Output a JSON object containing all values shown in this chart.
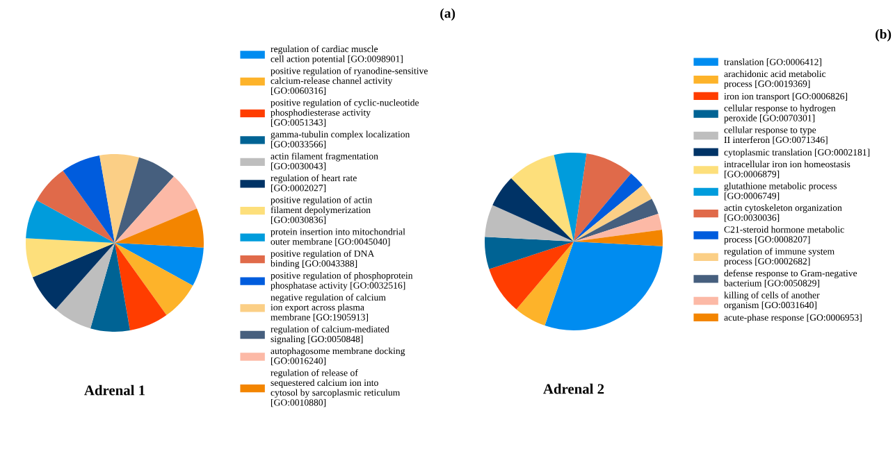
{
  "chart_data": [
    {
      "type": "pie",
      "title": "Adrenal 1",
      "annotations": [
        "(a)"
      ],
      "legend": "right",
      "categories": [
        "regulation of cardiac muscle\ncell action potential [GO:0098901]",
        "positive regulation of ryanodine-sensitive\ncalcium-release channel activity\n[GO:0060316]",
        "positive regulation of cyclic-nucleotide\nphosphodiesterase activity\n[GO:0051343]",
        "gamma-tubulin complex localization\n[GO:0033566]",
        "actin filament fragmentation\n[GO:0030043]",
        "regulation of heart rate\n[GO:0002027]",
        "positive regulation of actin\nfilament depolymerization\n[GO:0030836]",
        "protein insertion into mitochondrial\nouter membrane [GO:0045040]",
        "positive regulation of DNA\nbinding [GO:0043388]",
        "positive regulation of phosphoprotein\nphosphatase activity [GO:0032516]",
        "negative regulation of calcium\nion export across plasma\nmembrane [GO:1905913]",
        "regulation of calcium-mediated\nsignaling [GO:0050848]",
        "autophagosome membrane docking\n[GO:0016240]",
        "regulation of release of\nsequestered calcium ion into\ncytosol by sarcoplasmic reticulum\n[GO:0010880]"
      ],
      "values": [
        7.14,
        7.14,
        7.14,
        7.14,
        7.14,
        7.14,
        7.14,
        7.14,
        7.14,
        7.14,
        7.14,
        7.14,
        7.14,
        7.14
      ],
      "colors": [
        "#008cf0",
        "#fdb32a",
        "#ff3d00",
        "#006394",
        "#bebebe",
        "#003366",
        "#fddf7b",
        "#009cdc",
        "#e06a4a",
        "#005cdd",
        "#fbcf86",
        "#465f7e",
        "#fcb9a6",
        "#f38500"
      ]
    },
    {
      "type": "pie",
      "title": "Adrenal 2",
      "annotations": [
        "(b)"
      ],
      "legend": "right",
      "categories": [
        "translation [GO:0006412]",
        "arachidonic acid metabolic\nprocess [GO:0019369]",
        "iron ion transport [GO:0006826]",
        "cellular response to hydrogen\nperoxide [GO:0070301]",
        "cellular response to type\nII interferon [GO:0071346]",
        "cytoplasmic translation [GO:0002181]",
        "intracellular iron ion homeostasis\n[GO:0006879]",
        "glutathione metabolic process\n[GO:0006749]",
        "actin cytoskeleton organization\n[GO:0030036]",
        "C21-steroid hormone metabolic\nprocess [GO:0008207]",
        "regulation of immune system\nprocess [GO:0002682]",
        "defense response to Gram-negative\nbacterium [GO:0050829]",
        "killing of cells of another\norganism [GO:0031640]",
        "acute-phase response [GO:0006953]"
      ],
      "values": [
        29.44,
        5.88,
        8.82,
        5.88,
        5.88,
        5.88,
        8.82,
        5.88,
        8.82,
        2.94,
        2.94,
        2.94,
        2.94,
        2.94
      ],
      "colors": [
        "#008cf0",
        "#fdb32a",
        "#ff3d00",
        "#006394",
        "#bebebe",
        "#003366",
        "#fddf7b",
        "#009cdc",
        "#e06a4a",
        "#005cdd",
        "#fbcf86",
        "#465f7e",
        "#fcb9a6",
        "#f38500"
      ]
    }
  ]
}
